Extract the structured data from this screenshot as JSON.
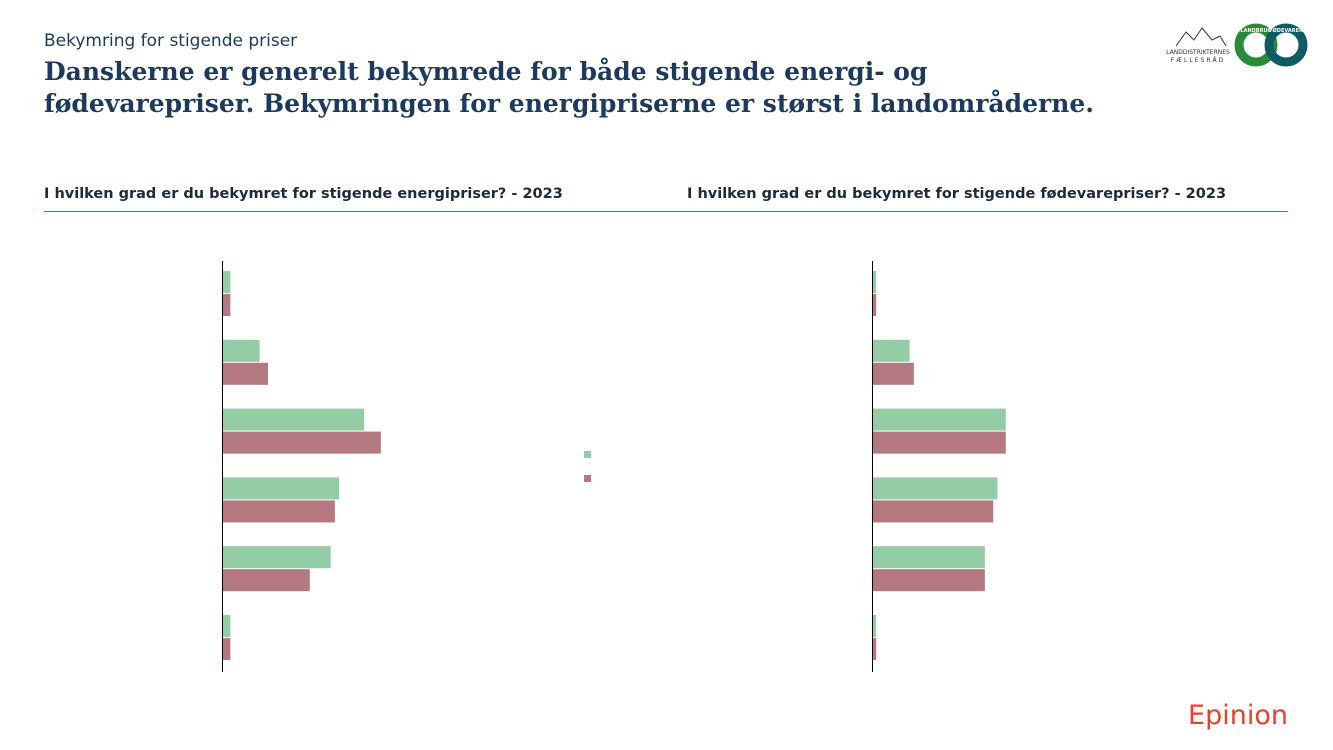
{
  "header": {
    "kicker": "Bekymring for stigende priser",
    "title_lines": [
      "Danskerne er generelt bekymrede for både stigende energi- og",
      "fødevarepriser. Bekymringen for energipriserne er størst i landområderne."
    ]
  },
  "logos": {
    "left_top": "LANDDISTRIKTERNES",
    "left_bottom": "FÆLLESRÅD",
    "ring_left": "LANDBRUG",
    "ring_right": "FØDEVARER"
  },
  "footer": {
    "brand": "Epinion"
  },
  "chart_data": [
    {
      "type": "bar",
      "orientation": "horizontal",
      "title": "I hvilken grad er du bekymret for stigende energipriser? - 2023",
      "categories": [
        null,
        null,
        null,
        null,
        null,
        null
      ],
      "xlim": [
        0,
        100
      ],
      "series": [
        {
          "color": "#94cca6",
          "values": [
            2,
            9,
            34,
            28,
            26,
            2
          ]
        },
        {
          "color": "#b37880",
          "values": [
            2,
            11,
            38,
            27,
            21,
            2
          ]
        }
      ]
    },
    {
      "type": "bar",
      "orientation": "horizontal",
      "title": "I hvilken grad er du bekymret for stigende fødevarepriser? - 2023",
      "categories": [
        null,
        null,
        null,
        null,
        null,
        null
      ],
      "xlim": [
        0,
        100
      ],
      "series": [
        {
          "color": "#94cca6",
          "values": [
            1,
            9,
            32,
            30,
            27,
            1
          ]
        },
        {
          "color": "#b37880",
          "values": [
            1,
            10,
            32,
            29,
            27,
            1
          ]
        }
      ]
    }
  ]
}
